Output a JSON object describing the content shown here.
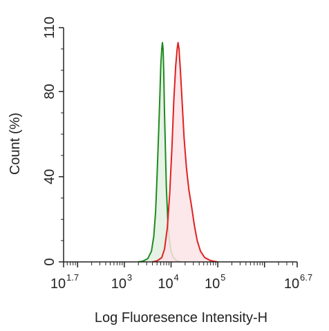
{
  "chart_data": {
    "type": "area",
    "xscale": "log10",
    "xlim_exponent": [
      1.7,
      6.7
    ],
    "ylim": [
      0,
      110
    ],
    "ylabel": "Count  (%)",
    "xlabel": "Log Fluoresence Intensity-H",
    "yticks": [
      {
        "value": 0,
        "label": "0"
      },
      {
        "value": 40,
        "label": "40"
      },
      {
        "value": 80,
        "label": "80"
      },
      {
        "value": 110,
        "label": "110"
      }
    ],
    "xticks": [
      {
        "exponent": 1.7,
        "base": "10",
        "sup": "1.7"
      },
      {
        "exponent": 3,
        "base": "10",
        "sup": "3"
      },
      {
        "exponent": 4,
        "base": "10",
        "sup": "4"
      },
      {
        "exponent": 5,
        "base": "10",
        "sup": "5"
      },
      {
        "exponent": 6.7,
        "base": "10",
        "sup": "6.7"
      }
    ],
    "series": [
      {
        "color": "#1e8a1e",
        "fill": "#e2f0e2",
        "points": [
          [
            3.3,
            0.0
          ],
          [
            3.4,
            0.4
          ],
          [
            3.5,
            1.5
          ],
          [
            3.58,
            5
          ],
          [
            3.63,
            12
          ],
          [
            3.67,
            24
          ],
          [
            3.7,
            40
          ],
          [
            3.73,
            58
          ],
          [
            3.76,
            78
          ],
          [
            3.78,
            92
          ],
          [
            3.8,
            100
          ],
          [
            3.815,
            103
          ],
          [
            3.83,
            100
          ],
          [
            3.845,
            88
          ],
          [
            3.86,
            70
          ],
          [
            3.88,
            52
          ],
          [
            3.9,
            35
          ],
          [
            3.93,
            20
          ],
          [
            3.96,
            11
          ],
          [
            4.0,
            5
          ],
          [
            4.05,
            2
          ],
          [
            4.12,
            0.6
          ],
          [
            4.2,
            0.0
          ]
        ]
      },
      {
        "color": "#e02020",
        "fill": "#fbe3e6",
        "points": [
          [
            3.6,
            0.0
          ],
          [
            3.7,
            0.5
          ],
          [
            3.8,
            2
          ],
          [
            3.86,
            6
          ],
          [
            3.92,
            16
          ],
          [
            3.97,
            32
          ],
          [
            4.02,
            54
          ],
          [
            4.06,
            76
          ],
          [
            4.1,
            92
          ],
          [
            4.13,
            100
          ],
          [
            4.15,
            103
          ],
          [
            4.17,
            100
          ],
          [
            4.2,
            90
          ],
          [
            4.24,
            74
          ],
          [
            4.28,
            58
          ],
          [
            4.33,
            44
          ],
          [
            4.38,
            34
          ],
          [
            4.44,
            26
          ],
          [
            4.5,
            17
          ],
          [
            4.56,
            10
          ],
          [
            4.63,
            5
          ],
          [
            4.72,
            2
          ],
          [
            4.85,
            0.6
          ],
          [
            5.0,
            0.0
          ]
        ]
      }
    ]
  }
}
